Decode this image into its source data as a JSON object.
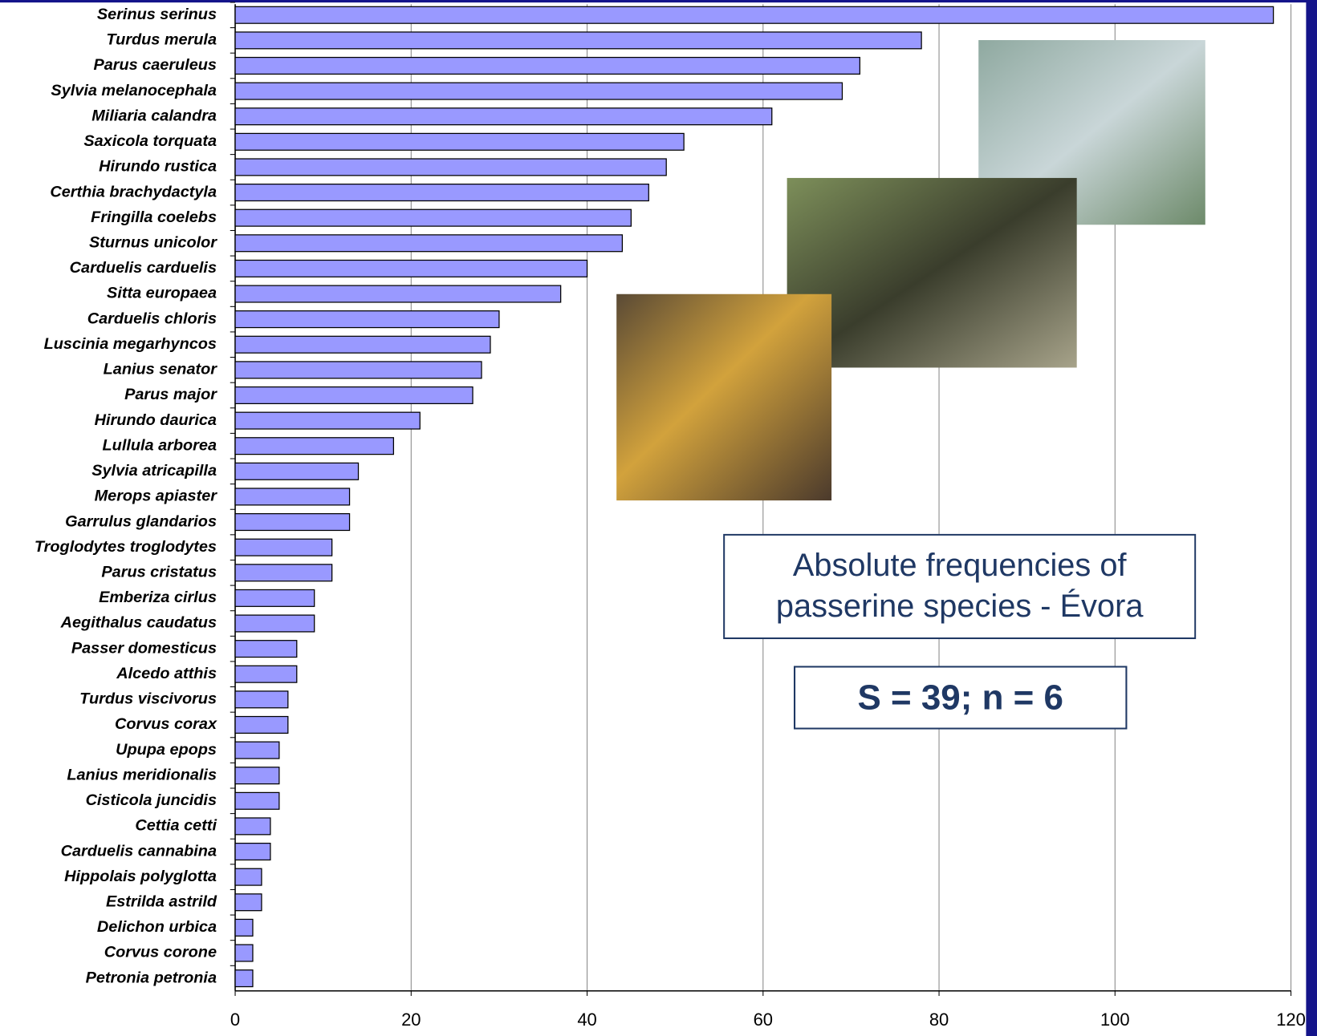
{
  "chart_data": {
    "type": "barh",
    "title": "Absolute frequencies of passerine species - Évora",
    "annotation": "S = 39; n = 6",
    "categories": [
      "Serinus serinus",
      "Turdus merula",
      "Parus caeruleus",
      "Sylvia melanocephala",
      "Miliaria calandra",
      "Saxicola torquata",
      "Hirundo rustica",
      "Certhia brachydactyla",
      "Fringilla coelebs",
      "Sturnus unicolor",
      "Carduelis carduelis",
      "Sitta europaea",
      "Carduelis chloris",
      "Luscinia megarhyncos",
      "Lanius senator",
      "Parus major",
      "Hirundo daurica",
      "Lullula arborea",
      "Sylvia atricapilla",
      "Merops apiaster",
      "Garrulus glandarios",
      "Troglodytes troglodytes",
      "Parus cristatus",
      "Emberiza cirlus",
      "Aegithalus caudatus",
      "Passer domesticus",
      "Alcedo atthis",
      "Turdus viscivorus",
      "Corvus corax",
      "Upupa epops",
      "Lanius meridionalis",
      "Cisticola juncidis",
      "Cettia cetti",
      "Carduelis cannabina",
      "Hippolais polyglotta",
      "Estrilda astrild",
      "Delichon urbica",
      "Corvus corone",
      "Petronia petronia"
    ],
    "values": [
      118,
      78,
      71,
      69,
      61,
      51,
      49,
      47,
      45,
      44,
      40,
      37,
      30,
      29,
      28,
      27,
      21,
      18,
      14,
      13,
      13,
      11,
      11,
      9,
      9,
      7,
      7,
      6,
      6,
      5,
      5,
      5,
      4,
      4,
      3,
      3,
      2,
      2,
      2
    ],
    "color": "#9999ff",
    "xlim": [
      0,
      120
    ],
    "xticks": [
      0,
      20,
      40,
      60,
      80,
      100,
      120
    ],
    "grid": true
  }
}
